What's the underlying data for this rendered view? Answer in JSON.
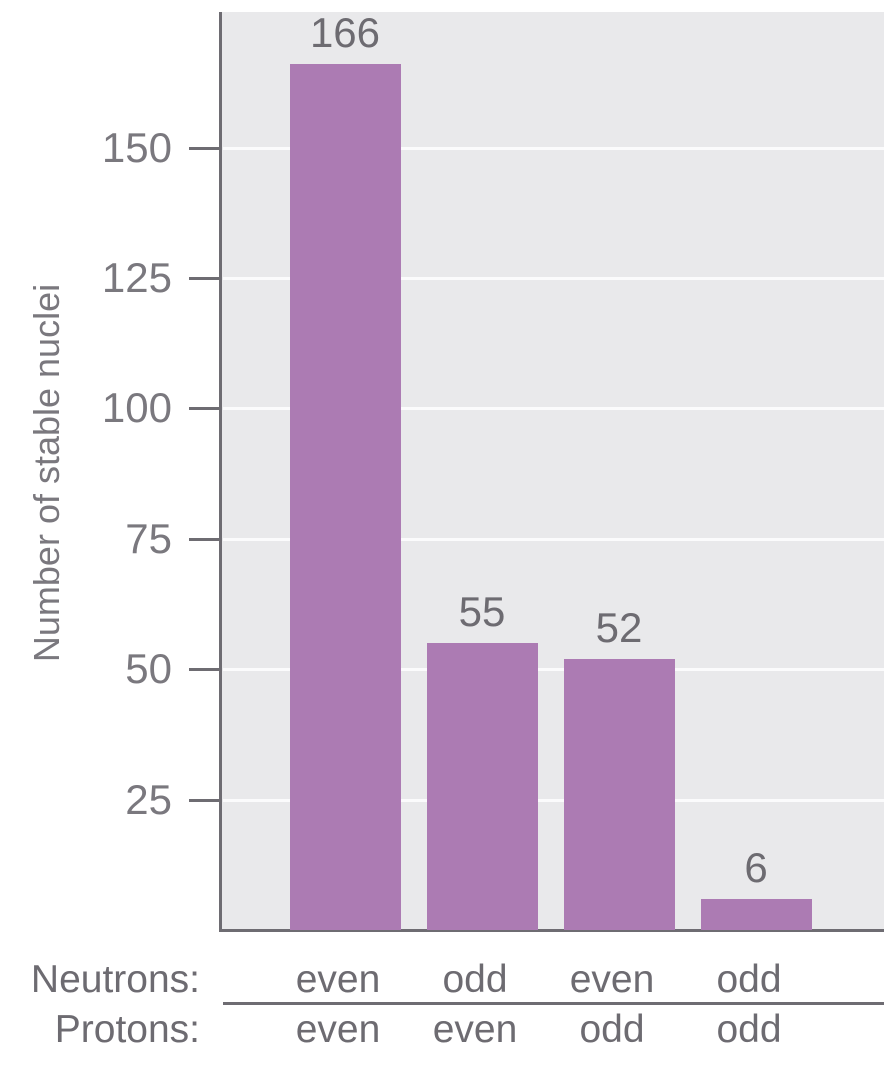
{
  "chart_data": {
    "type": "bar",
    "title": "",
    "ylabel": "Number of stable nuclei",
    "categories": [
      "neutrons even / protons even",
      "neutrons odd / protons even",
      "neutrons even / protons odd",
      "neutrons odd / protons odd"
    ],
    "values": [
      166,
      55,
      52,
      6
    ],
    "bar_value_labels": [
      "166",
      "55",
      "52",
      "6"
    ],
    "yticks": [
      25,
      50,
      75,
      100,
      125,
      150
    ],
    "ylim": [
      0,
      176
    ],
    "grid": "horizontal white gridlines at each y tick",
    "legend": "none",
    "x_axis_rows": [
      {
        "label": "Neutrons:",
        "cells": [
          "even",
          "odd",
          "even",
          "odd"
        ]
      },
      {
        "label": "Protons:",
        "cells": [
          "even",
          "even",
          "odd",
          "odd"
        ]
      }
    ]
  },
  "colors": {
    "page_background": "#ffffff",
    "plot_background": "#e9e9eb",
    "bar": "#ac7bb3",
    "axis": "#6e6c72",
    "gridline": "#fbfbfc",
    "tick_label_text": "#7a787e",
    "label_text": "#6d6b71"
  }
}
